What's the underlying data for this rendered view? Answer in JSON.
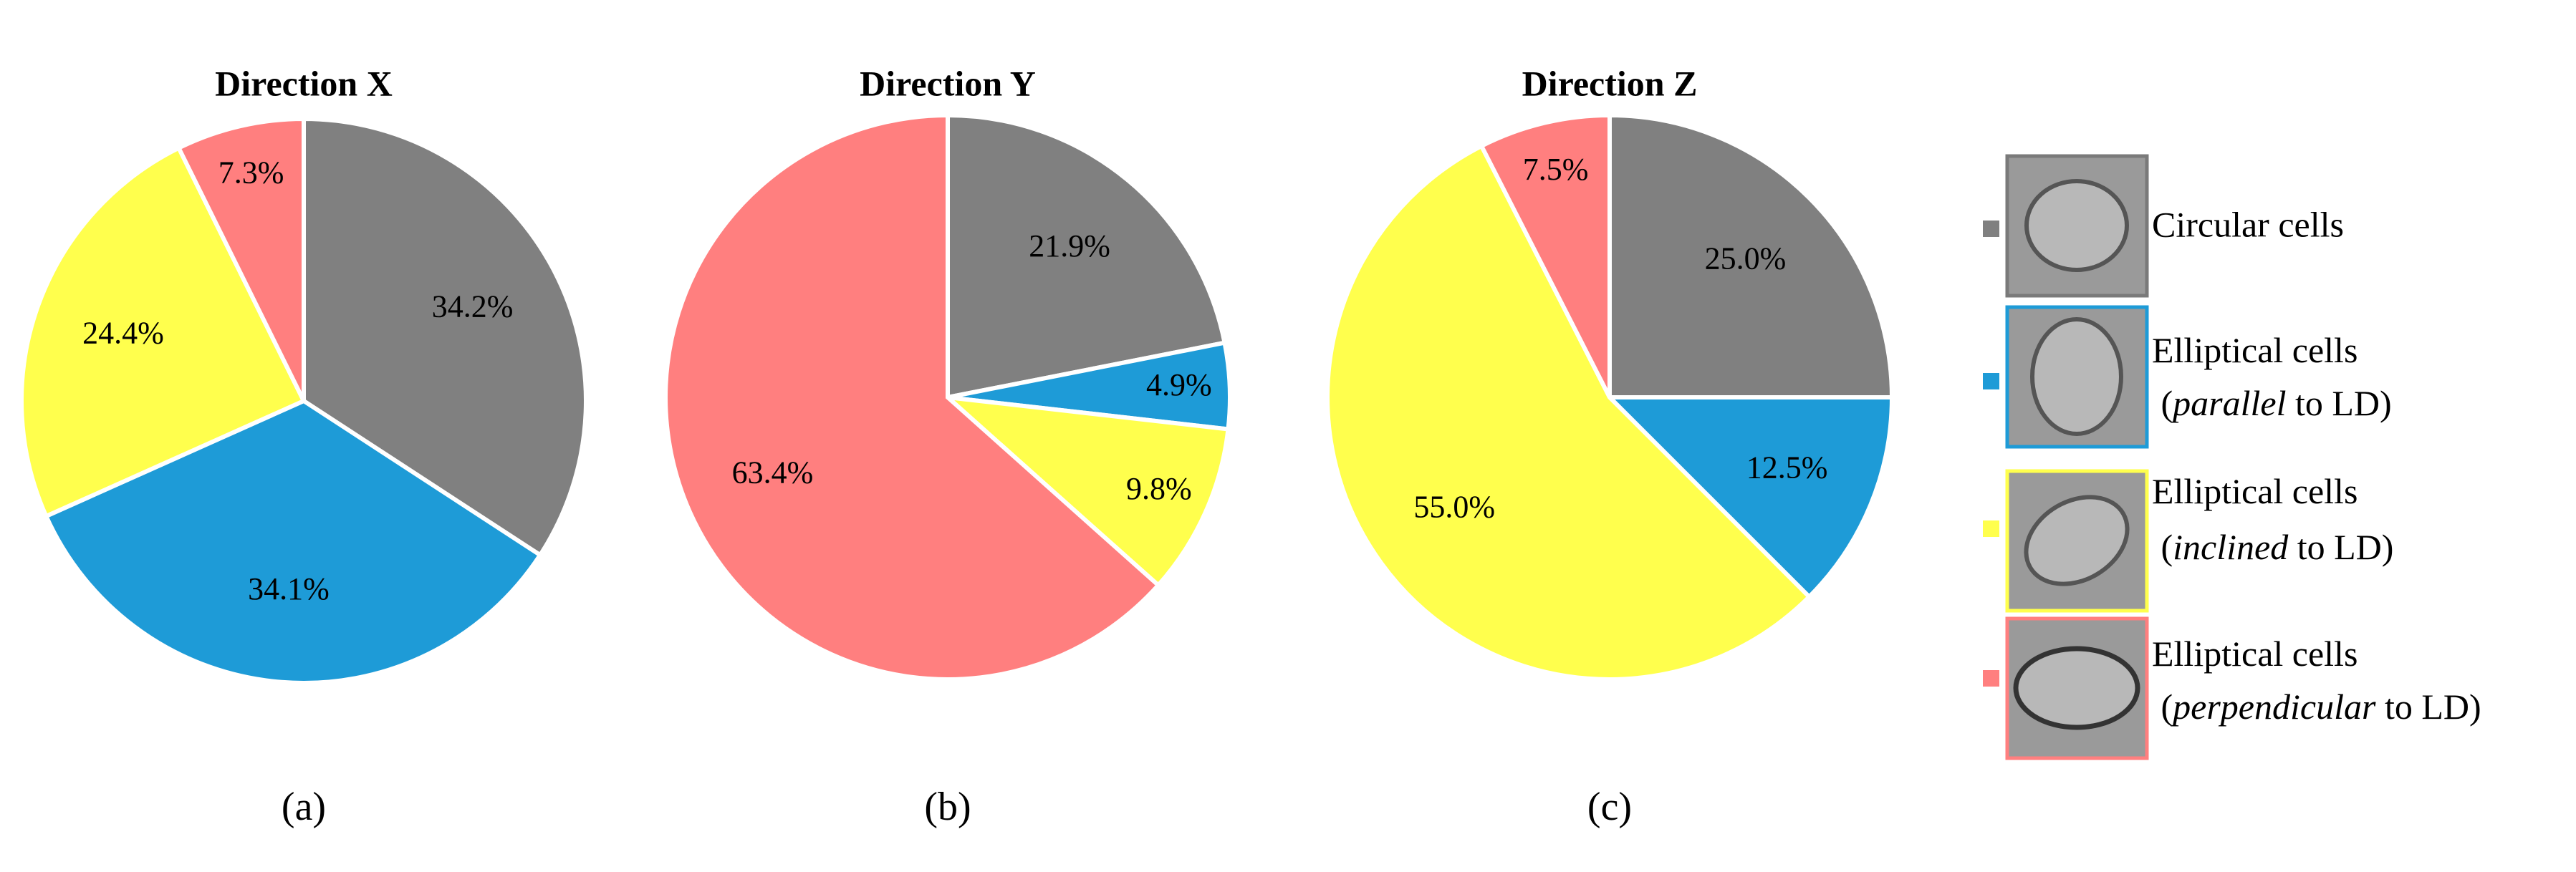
{
  "chart_data": [
    {
      "type": "pie",
      "title": "Direction X",
      "panel_label": "(a)",
      "categories": [
        "Circular cells",
        "Elliptical cells (parallel to LD)",
        "Elliptical cells (inclined to LD)",
        "Elliptical cells (perpendicular to LD)"
      ],
      "values": [
        34.2,
        34.1,
        24.4,
        7.3
      ],
      "value_labels": [
        "34.2%",
        "34.1%",
        "24.4%",
        "7.3%"
      ],
      "colors": [
        "#808080",
        "#1e9bd7",
        "#ffff4d",
        "#ff7f7f"
      ]
    },
    {
      "type": "pie",
      "title": "Direction Y",
      "panel_label": "(b)",
      "categories": [
        "Circular cells",
        "Elliptical cells (parallel to LD)",
        "Elliptical cells (inclined to LD)",
        "Elliptical cells (perpendicular to LD)"
      ],
      "values": [
        21.9,
        4.9,
        9.8,
        63.4
      ],
      "value_labels": [
        "21.9%",
        "4.9%",
        "9.8%",
        "63.4%"
      ],
      "colors": [
        "#808080",
        "#1e9bd7",
        "#ffff4d",
        "#ff7f7f"
      ]
    },
    {
      "type": "pie",
      "title": "Direction Z",
      "panel_label": "(c)",
      "categories": [
        "Circular cells",
        "Elliptical cells (parallel to LD)",
        "Elliptical cells (inclined to LD)",
        "Elliptical cells (perpendicular to LD)"
      ],
      "values": [
        25.0,
        12.5,
        55.0,
        7.5
      ],
      "value_labels": [
        "25.0%",
        "12.5%",
        "55.0%",
        "7.5%"
      ],
      "colors": [
        "#808080",
        "#1e9bd7",
        "#ffff4d",
        "#ff7f7f"
      ]
    }
  ]
}
